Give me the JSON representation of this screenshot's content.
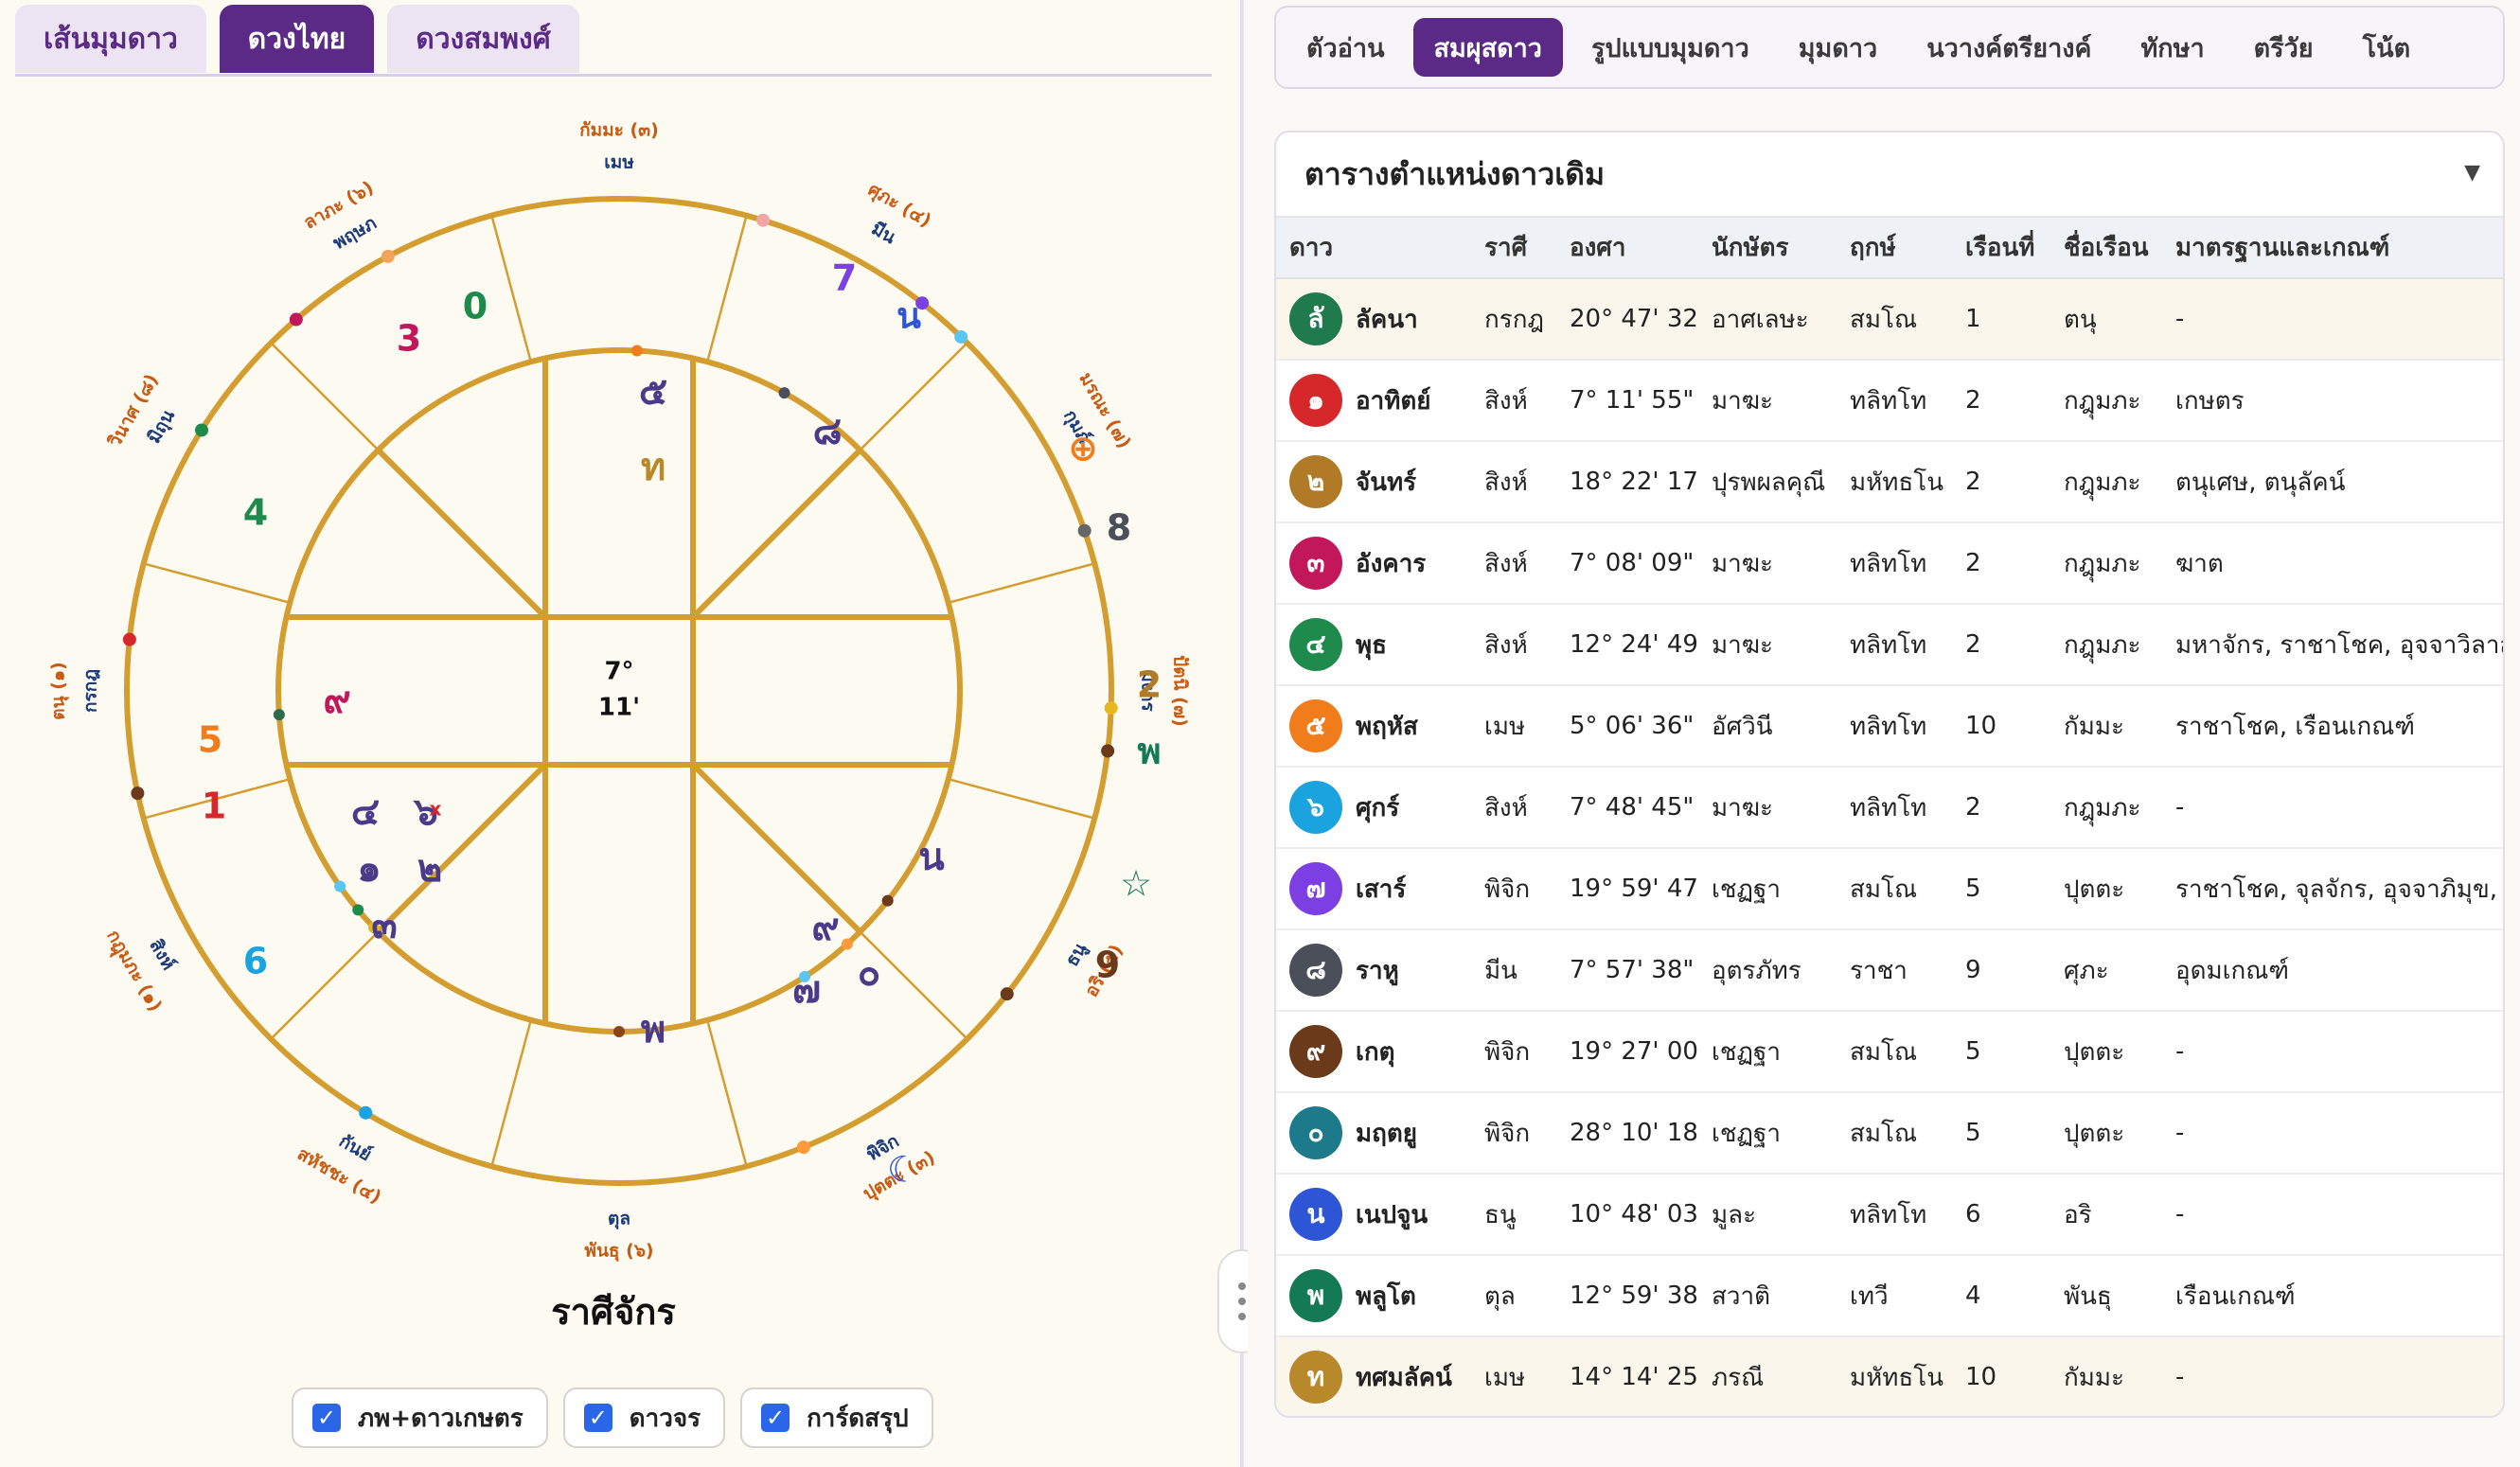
{
  "left_tabs": [
    {
      "label": "เส้นมุมดาว",
      "active": false
    },
    {
      "label": "ดวงไทย",
      "active": true
    },
    {
      "label": "ดวงสมพงศ์",
      "active": false
    }
  ],
  "wheel": {
    "title": "ราศีจักร",
    "center_text": [
      "7°",
      "11'"
    ],
    "houses": [
      {
        "sign": "เมษ",
        "role": "กัมมะ (๓)"
      },
      {
        "sign": "มีน",
        "role": "ศุภะ (๔)"
      },
      {
        "sign": "กุมภ์",
        "role": "มรณะ (๗)"
      },
      {
        "sign": "มังกร",
        "role": "ปัตนิ (๗)"
      },
      {
        "sign": "ธนู",
        "role": "อริ (๕)"
      },
      {
        "sign": "พิจิก",
        "role": "ปุตตะ (๓)"
      },
      {
        "sign": "ตุล",
        "role": "พันธุ (๖)"
      },
      {
        "sign": "กันย์",
        "role": "สหัชชะ (๔)"
      },
      {
        "sign": "สิงห์",
        "role": "กฎุมภะ (๑)"
      },
      {
        "sign": "กรกฎ",
        "role": "ตนุ (๑)"
      },
      {
        "sign": "มิถุน",
        "role": "วินาศ (๘)"
      },
      {
        "sign": "พฤษภ",
        "role": "ลาภะ (๖)"
      }
    ],
    "outer_numbers": [
      "0",
      "3",
      "7",
      "น",
      "⊕",
      "8",
      "4",
      "2",
      "พ",
      "5",
      "1",
      "☆",
      "9",
      "6",
      "☾"
    ],
    "inner_glyphs": [
      "๕",
      "ท",
      "๘",
      "๙",
      "๔",
      "๖",
      "๑",
      "๒",
      "๓",
      "น",
      "๙",
      "๗",
      "๐",
      "พ",
      "x"
    ],
    "colors": {
      "ring": "#d39d2f",
      "lines": "#d39d2f",
      "bg": "#fdfaf2"
    }
  },
  "checkboxes": [
    {
      "label": "ภพ+ดาวเกษตร",
      "checked": true
    },
    {
      "label": "ดาวจร",
      "checked": true
    },
    {
      "label": "การ์ดสรุป",
      "checked": true
    }
  ],
  "right_tabs": [
    {
      "label": "ตัวอ่าน",
      "active": false
    },
    {
      "label": "สมผุสดาว",
      "active": true
    },
    {
      "label": "รูปแบบมุมดาว",
      "active": false
    },
    {
      "label": "มุมดาว",
      "active": false
    },
    {
      "label": "นวางค์ตรียางค์",
      "active": false
    },
    {
      "label": "ทักษา",
      "active": false
    },
    {
      "label": "ตรีวัย",
      "active": false
    },
    {
      "label": "โน้ต",
      "active": false
    }
  ],
  "table": {
    "title": "ตารางตำแหน่งดาวเดิม",
    "headers": [
      "ดาว",
      "ราศี",
      "องศา",
      "นักษัตร",
      "ฤกษ์",
      "เรือนที่",
      "ชื่อเรือน",
      "มาตรฐานและเกณฑ์"
    ],
    "rows": [
      {
        "badge": "ลั",
        "badge_color": "#1f7a4d",
        "name": "ลัคนา",
        "sign": "กรกฎ",
        "degree": "20° 47' 32\"",
        "nakshatra": "อาศเลษะ",
        "reuk": "สมโณ",
        "house": "1",
        "house_name": "ตนุ",
        "criteria": "-",
        "highlight": true
      },
      {
        "badge": "๑",
        "badge_color": "#d6282b",
        "name": "อาทิตย์",
        "sign": "สิงห์",
        "degree": "7° 11' 55\"",
        "nakshatra": "มาฆะ",
        "reuk": "ทลิทโท",
        "house": "2",
        "house_name": "กฎุมภะ",
        "criteria": "เกษตร",
        "highlight": false
      },
      {
        "badge": "๒",
        "badge_color": "#b07a26",
        "name": "จันทร์",
        "sign": "สิงห์",
        "degree": "18° 22' 17\"",
        "nakshatra": "ปุรพผลคุณี",
        "reuk": "มหัทธโน",
        "house": "2",
        "house_name": "กฎุมภะ",
        "criteria": "ตนุเศษ, ตนุลัคน์",
        "highlight": false
      },
      {
        "badge": "๓",
        "badge_color": "#c2185b",
        "name": "อังคาร",
        "sign": "สิงห์",
        "degree": "7° 08' 09\"",
        "nakshatra": "มาฆะ",
        "reuk": "ทลิทโท",
        "house": "2",
        "house_name": "กฎุมภะ",
        "criteria": "ฆาต",
        "highlight": false
      },
      {
        "badge": "๔",
        "badge_color": "#1e8a4c",
        "name": "พุธ",
        "sign": "สิงห์",
        "degree": "12° 24' 49\"",
        "nakshatra": "มาฆะ",
        "reuk": "ทลิทโท",
        "house": "2",
        "house_name": "กฎุมภะ",
        "criteria": "มหาจักร, ราชาโชค, อุจจาวิลาส",
        "highlight": false
      },
      {
        "badge": "๕",
        "badge_color": "#f07c1c",
        "name": "พฤหัส",
        "sign": "เมษ",
        "degree": "5° 06' 36\"",
        "nakshatra": "อัศวินี",
        "reuk": "ทลิทโท",
        "house": "10",
        "house_name": "กัมมะ",
        "criteria": "ราชาโชค, เรือนเกณฑ์",
        "highlight": false
      },
      {
        "badge": "๖",
        "badge_color": "#1ba3e0",
        "name": "ศุกร์",
        "sign": "สิงห์",
        "degree": "7° 48' 45\"",
        "nakshatra": "มาฆะ",
        "reuk": "ทลิทโท",
        "house": "2",
        "house_name": "กฎุมภะ",
        "criteria": "-",
        "highlight": false
      },
      {
        "badge": "๗",
        "badge_color": "#7b3fe4",
        "name": "เสาร์",
        "sign": "พิจิก",
        "degree": "19° 59' 47\"",
        "nakshatra": "เชฏฐา",
        "reuk": "สมโณ",
        "house": "5",
        "house_name": "ปุตตะ",
        "criteria": "ราชาโชค, จุลจักร, อุจจาภิมุข, อุดม",
        "highlight": false
      },
      {
        "badge": "๘",
        "badge_color": "#4a4f5a",
        "name": "ราหู",
        "sign": "มีน",
        "degree": "7° 57' 38\"",
        "nakshatra": "อุตรภัทร",
        "reuk": "ราชา",
        "house": "9",
        "house_name": "ศุภะ",
        "criteria": "อุดมเกณฑ์",
        "highlight": false
      },
      {
        "badge": "๙",
        "badge_color": "#6b3a1a",
        "name": "เกตุ",
        "sign": "พิจิก",
        "degree": "19° 27' 00\"",
        "nakshatra": "เชฏฐา",
        "reuk": "สมโณ",
        "house": "5",
        "house_name": "ปุตตะ",
        "criteria": "-",
        "highlight": false
      },
      {
        "badge": "๐",
        "badge_color": "#1d7a8a",
        "name": "มฤตยู",
        "sign": "พิจิก",
        "degree": "28° 10' 18\"",
        "nakshatra": "เชฏฐา",
        "reuk": "สมโณ",
        "house": "5",
        "house_name": "ปุตตะ",
        "criteria": "-",
        "highlight": false
      },
      {
        "badge": "น",
        "badge_color": "#2d55d6",
        "name": "เนปจูน",
        "sign": "ธนู",
        "degree": "10° 48' 03\"",
        "nakshatra": "มูละ",
        "reuk": "ทลิทโท",
        "house": "6",
        "house_name": "อริ",
        "criteria": "-",
        "highlight": false
      },
      {
        "badge": "พ",
        "badge_color": "#137a55",
        "name": "พลูโต",
        "sign": "ตุล",
        "degree": "12° 59' 38\"",
        "nakshatra": "สวาติ",
        "reuk": "เทวี",
        "house": "4",
        "house_name": "พันธุ",
        "criteria": "เรือนเกณฑ์",
        "highlight": false
      },
      {
        "badge": "ท",
        "badge_color": "#b8892a",
        "name": "ทศมลัคน์",
        "sign": "เมษ",
        "degree": "14° 14' 25\"",
        "nakshatra": "ภรณี",
        "reuk": "มหัทธโน",
        "house": "10",
        "house_name": "กัมมะ",
        "criteria": "-",
        "highlight": true
      }
    ]
  }
}
